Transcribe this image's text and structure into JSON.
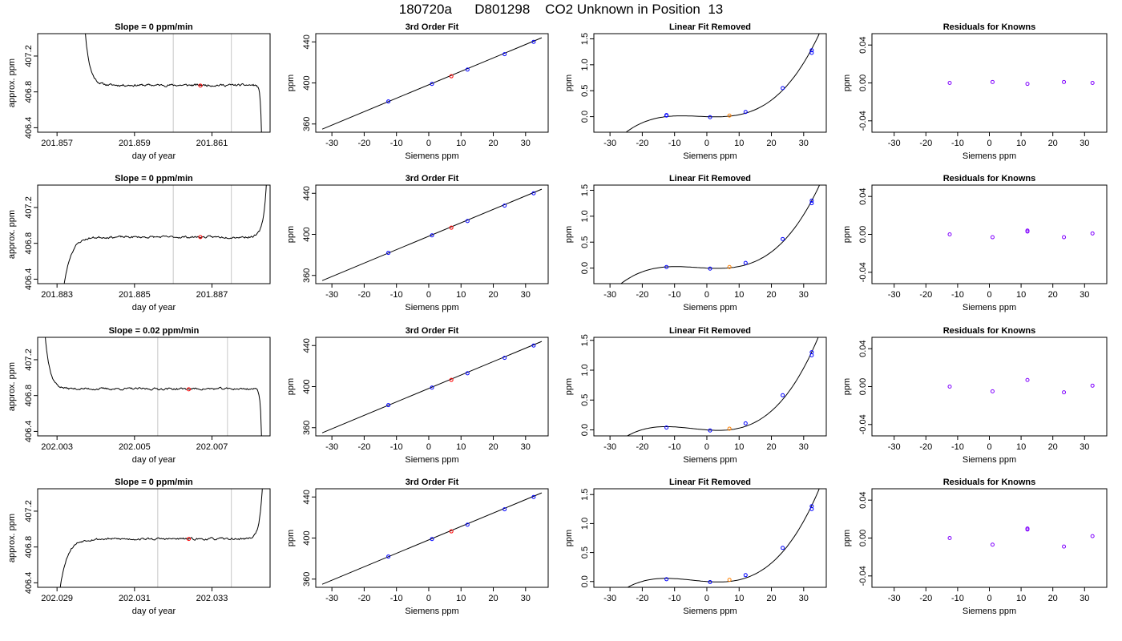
{
  "figure": {
    "title": "180720a      D801298    CO2 Unknown in Position  13"
  },
  "colors": {
    "axis": "#000000",
    "trace": "#000000",
    "window_lines": "#c8c8c8",
    "known_points": "#0000ff",
    "unknown_point": "#ff0000",
    "removed_unknown_point": "#ff8000",
    "residual_points": "#8000ff"
  },
  "chart_data": [
    {
      "type": "line",
      "title": "Slope =  0  ppm/min",
      "xlabel": "day of year",
      "ylabel": "approx. ppm",
      "xlim": [
        201.8565,
        201.8625
      ],
      "ylim": [
        406.35,
        407.45
      ],
      "xticks": [
        201.857,
        201.859,
        201.861
      ],
      "xtick_labels": [
        "201.857",
        "201.859",
        "201.861"
      ],
      "yticks": [
        406.4,
        406.8,
        407.2
      ],
      "ytick_labels": [
        "406.4",
        "406.8",
        "407.2"
      ],
      "vlines": [
        201.86,
        201.8615
      ],
      "marker": {
        "x": 201.8607,
        "y": 406.87
      },
      "trace": {
        "x_start": 201.8576,
        "x_end": 201.8623,
        "shape": "decay-left drop-right",
        "plateau": 406.875,
        "noise": 0.012,
        "edge_left": 408.6,
        "edge_right": 405.8,
        "tau": 0.00012,
        "seed": 11
      }
    },
    {
      "type": "line",
      "title": "3rd Order Fit",
      "xlabel": "Siemens ppm",
      "ylabel": "ppm",
      "xlim": [
        -35,
        37
      ],
      "ylim": [
        352,
        448
      ],
      "xticks": [
        -30,
        -20,
        -10,
        0,
        10,
        20,
        30
      ],
      "xtick_labels": [
        "-30",
        "-20",
        "-10",
        "0",
        "10",
        "20",
        "30"
      ],
      "yticks": [
        360,
        400,
        440
      ],
      "ytick_labels": [
        "360",
        "400",
        "440"
      ],
      "curve": {
        "x": [
          -33,
          35
        ],
        "y": [
          355,
          444
        ]
      },
      "known_points": [
        {
          "x": -12.5,
          "y": 382
        },
        {
          "x": 1.0,
          "y": 399
        },
        {
          "x": 12.0,
          "y": 413
        },
        {
          "x": 23.5,
          "y": 428
        },
        {
          "x": 32.5,
          "y": 440
        }
      ],
      "unknown_point": {
        "x": 7.0,
        "y": 406.5
      }
    },
    {
      "type": "line",
      "title": "Linear Fit Removed",
      "xlabel": "Siemens ppm",
      "ylabel": "ppm",
      "xlim": [
        -35,
        37
      ],
      "ylim": [
        -0.3,
        1.6
      ],
      "xticks": [
        -30,
        -20,
        -10,
        0,
        10,
        20,
        30
      ],
      "xtick_labels": [
        "-30",
        "-20",
        "-10",
        "0",
        "10",
        "20",
        "30"
      ],
      "yticks": [
        0.0,
        0.5,
        1.0,
        1.5
      ],
      "ytick_labels": [
        "0.0",
        "0.5",
        "1.0",
        "1.5"
      ],
      "curve": {
        "a": 0.0,
        "b": -0.002,
        "c": 0.00025,
        "d": 3.23e-05,
        "x_from": -33,
        "x_to": 35
      },
      "known_points": [
        {
          "x": -12.5,
          "y": 0.02
        },
        {
          "x": -12.5,
          "y": 0.03
        },
        {
          "x": 1.0,
          "y": -0.01
        },
        {
          "x": 12.0,
          "y": 0.09
        },
        {
          "x": 23.5,
          "y": 0.55
        },
        {
          "x": 32.5,
          "y": 1.23
        },
        {
          "x": 32.5,
          "y": 1.28
        }
      ],
      "removed_point": {
        "x": 7.0,
        "y": 0.02
      }
    },
    {
      "type": "scatter",
      "title": "Residuals for Knowns",
      "xlabel": "Siemens ppm",
      "ylabel": "ppm",
      "xlim": [
        -37,
        37
      ],
      "ylim": [
        -0.052,
        0.052
      ],
      "xticks": [
        -30,
        -20,
        -10,
        0,
        10,
        20,
        30
      ],
      "xtick_labels": [
        "-30",
        "-20",
        "-10",
        "0",
        "10",
        "20",
        "30"
      ],
      "yticks": [
        -0.04,
        0.0,
        0.04
      ],
      "ytick_labels": [
        "-0.04",
        "0.00",
        "0.04"
      ],
      "points": [
        {
          "x": -12.5,
          "y": 0.0
        },
        {
          "x": 1.0,
          "y": 0.001
        },
        {
          "x": 12.0,
          "y": -0.001
        },
        {
          "x": 23.5,
          "y": 0.001
        },
        {
          "x": 32.5,
          "y": 0.0
        }
      ]
    },
    {
      "type": "line",
      "title": "Slope =  0  ppm/min",
      "xlabel": "day of year",
      "ylabel": "approx. ppm",
      "xlim": [
        201.8825,
        201.8885
      ],
      "ylim": [
        406.35,
        407.45
      ],
      "xticks": [
        201.883,
        201.885,
        201.887
      ],
      "xtick_labels": [
        "201.883",
        "201.885",
        "201.887"
      ],
      "yticks": [
        406.4,
        406.8,
        407.2
      ],
      "ytick_labels": [
        "406.4",
        "406.8",
        "407.2"
      ],
      "vlines": [
        201.886,
        201.8875
      ],
      "marker": {
        "x": 201.8867,
        "y": 406.87
      },
      "trace": {
        "x_start": 201.883,
        "x_end": 201.8885,
        "shape": "rise-left rise-right",
        "plateau": 406.87,
        "noise": 0.012,
        "edge_left": 405.4,
        "edge_right": 408.8,
        "tau": 0.00018,
        "seed": 23
      }
    },
    {
      "type": "line",
      "title": "3rd Order Fit",
      "xlabel": "Siemens ppm",
      "ylabel": "ppm",
      "xlim": [
        -35,
        37
      ],
      "ylim": [
        352,
        448
      ],
      "xticks": [
        -30,
        -20,
        -10,
        0,
        10,
        20,
        30
      ],
      "xtick_labels": [
        "-30",
        "-20",
        "-10",
        "0",
        "10",
        "20",
        "30"
      ],
      "yticks": [
        360,
        400,
        440
      ],
      "ytick_labels": [
        "360",
        "400",
        "440"
      ],
      "curve": {
        "x": [
          -33,
          35
        ],
        "y": [
          355,
          444
        ]
      },
      "known_points": [
        {
          "x": -12.5,
          "y": 382
        },
        {
          "x": 1.0,
          "y": 399
        },
        {
          "x": 12.0,
          "y": 413
        },
        {
          "x": 23.5,
          "y": 428
        },
        {
          "x": 32.5,
          "y": 440
        }
      ],
      "unknown_point": {
        "x": 7.0,
        "y": 406.5
      }
    },
    {
      "type": "line",
      "title": "Linear Fit Removed",
      "xlabel": "Siemens ppm",
      "ylabel": "ppm",
      "xlim": [
        -35,
        37
      ],
      "ylim": [
        -0.3,
        1.6
      ],
      "xticks": [
        -30,
        -20,
        -10,
        0,
        10,
        20,
        30
      ],
      "xtick_labels": [
        "-30",
        "-20",
        "-10",
        "0",
        "10",
        "20",
        "30"
      ],
      "yticks": [
        0.0,
        0.5,
        1.0,
        1.5
      ],
      "ytick_labels": [
        "0.0",
        "0.5",
        "1.0",
        "1.5"
      ],
      "curve": {
        "a": 0.0,
        "b": -0.003,
        "c": 0.0003,
        "d": 3.15e-05,
        "x_from": -33,
        "x_to": 35
      },
      "known_points": [
        {
          "x": -12.5,
          "y": 0.02
        },
        {
          "x": 1.0,
          "y": -0.01
        },
        {
          "x": 12.0,
          "y": 0.1
        },
        {
          "x": 23.5,
          "y": 0.56
        },
        {
          "x": 32.5,
          "y": 1.25
        },
        {
          "x": 32.5,
          "y": 1.3
        }
      ],
      "removed_point": {
        "x": 7.0,
        "y": 0.02
      }
    },
    {
      "type": "scatter",
      "title": "Residuals for Knowns",
      "xlabel": "Siemens ppm",
      "ylabel": "ppm",
      "xlim": [
        -37,
        37
      ],
      "ylim": [
        -0.052,
        0.052
      ],
      "xticks": [
        -30,
        -20,
        -10,
        0,
        10,
        20,
        30
      ],
      "xtick_labels": [
        "-30",
        "-20",
        "-10",
        "0",
        "10",
        "20",
        "30"
      ],
      "yticks": [
        -0.04,
        0.0,
        0.04
      ],
      "ytick_labels": [
        "-0.04",
        "0.00",
        "0.04"
      ],
      "points": [
        {
          "x": -12.5,
          "y": 0.0
        },
        {
          "x": 1.0,
          "y": -0.003
        },
        {
          "x": 12.0,
          "y": 0.004
        },
        {
          "x": 12.0,
          "y": 0.003
        },
        {
          "x": 23.5,
          "y": -0.003
        },
        {
          "x": 32.5,
          "y": 0.001
        }
      ]
    },
    {
      "type": "line",
      "title": "Slope =  0.02  ppm/min",
      "xlabel": "day of year",
      "ylabel": "approx. ppm",
      "xlim": [
        202.0025,
        202.0085
      ],
      "ylim": [
        406.35,
        407.45
      ],
      "xticks": [
        202.003,
        202.005,
        202.007
      ],
      "xtick_labels": [
        "202.003",
        "202.005",
        "202.007"
      ],
      "yticks": [
        406.4,
        406.8,
        407.2
      ],
      "ytick_labels": [
        "406.4",
        "406.8",
        "407.2"
      ],
      "vlines": [
        202.0056,
        202.0074
      ],
      "marker": {
        "x": 202.0064,
        "y": 406.87
      },
      "trace": {
        "x_start": 202.0026,
        "x_end": 202.0083,
        "shape": "decay-left drop-right",
        "plateau": 406.875,
        "noise": 0.012,
        "edge_left": 408.2,
        "edge_right": 405.8,
        "tau": 0.00012,
        "seed": 37
      }
    },
    {
      "type": "line",
      "title": "3rd Order Fit",
      "xlabel": "Siemens ppm",
      "ylabel": "ppm",
      "xlim": [
        -35,
        37
      ],
      "ylim": [
        352,
        448
      ],
      "xticks": [
        -30,
        -20,
        -10,
        0,
        10,
        20,
        30
      ],
      "xtick_labels": [
        "-30",
        "-20",
        "-10",
        "0",
        "10",
        "20",
        "30"
      ],
      "yticks": [
        360,
        400,
        440
      ],
      "ytick_labels": [
        "360",
        "400",
        "440"
      ],
      "curve": {
        "x": [
          -33,
          35
        ],
        "y": [
          355,
          444
        ]
      },
      "known_points": [
        {
          "x": -12.5,
          "y": 382
        },
        {
          "x": 1.0,
          "y": 399
        },
        {
          "x": 12.0,
          "y": 413
        },
        {
          "x": 23.5,
          "y": 428
        },
        {
          "x": 32.5,
          "y": 440
        }
      ],
      "unknown_point": {
        "x": 7.0,
        "y": 406.5
      }
    },
    {
      "type": "line",
      "title": "Linear Fit Removed",
      "xlabel": "Siemens ppm",
      "ylabel": "ppm",
      "xlim": [
        -35,
        37
      ],
      "ylim": [
        -0.1,
        1.55
      ],
      "xticks": [
        -30,
        -20,
        -10,
        0,
        10,
        20,
        30
      ],
      "xtick_labels": [
        "-30",
        "-20",
        "-10",
        "0",
        "10",
        "20",
        "30"
      ],
      "yticks": [
        0.0,
        0.5,
        1.0,
        1.5
      ],
      "ytick_labels": [
        "0.0",
        "0.5",
        "1.0",
        "1.5"
      ],
      "curve": {
        "a": 0.0,
        "b": -0.004,
        "c": 0.0004,
        "d": 2.95e-05,
        "x_from": -33,
        "x_to": 35
      },
      "known_points": [
        {
          "x": -12.5,
          "y": 0.04
        },
        {
          "x": 1.0,
          "y": -0.01
        },
        {
          "x": 12.0,
          "y": 0.11
        },
        {
          "x": 23.5,
          "y": 0.58
        },
        {
          "x": 32.5,
          "y": 1.25
        },
        {
          "x": 32.5,
          "y": 1.3
        }
      ],
      "removed_point": {
        "x": 7.0,
        "y": 0.02
      }
    },
    {
      "type": "scatter",
      "title": "Residuals for Knowns",
      "xlabel": "Siemens ppm",
      "ylabel": "ppm",
      "xlim": [
        -37,
        37
      ],
      "ylim": [
        -0.052,
        0.052
      ],
      "xticks": [
        -30,
        -20,
        -10,
        0,
        10,
        20,
        30
      ],
      "xtick_labels": [
        "-30",
        "-20",
        "-10",
        "0",
        "10",
        "20",
        "30"
      ],
      "yticks": [
        -0.04,
        0.0,
        0.04
      ],
      "ytick_labels": [
        "-0.04",
        "0.00",
        "0.04"
      ],
      "points": [
        {
          "x": -12.5,
          "y": 0.0
        },
        {
          "x": 1.0,
          "y": -0.005
        },
        {
          "x": 12.0,
          "y": 0.007
        },
        {
          "x": 23.5,
          "y": -0.006
        },
        {
          "x": 32.5,
          "y": 0.001
        }
      ]
    },
    {
      "type": "line",
      "title": "Slope =  0  ppm/min",
      "xlabel": "day of year",
      "ylabel": "approx. ppm",
      "xlim": [
        202.0285,
        202.0345
      ],
      "ylim": [
        406.35,
        407.45
      ],
      "xticks": [
        202.029,
        202.031,
        202.033
      ],
      "xtick_labels": [
        "202.029",
        "202.031",
        "202.033"
      ],
      "yticks": [
        406.4,
        406.8,
        407.2
      ],
      "ytick_labels": [
        "406.4",
        "406.8",
        "407.2"
      ],
      "vlines": [
        202.0316,
        202.0335
      ],
      "marker": {
        "x": 202.0324,
        "y": 406.89
      },
      "trace": {
        "x_start": 202.0289,
        "x_end": 202.0344,
        "shape": "rise-left rise-right",
        "plateau": 406.89,
        "noise": 0.012,
        "edge_left": 405.4,
        "edge_right": 408.8,
        "tau": 0.00018,
        "seed": 53
      }
    },
    {
      "type": "line",
      "title": "3rd Order Fit",
      "xlabel": "Siemens ppm",
      "ylabel": "ppm",
      "xlim": [
        -35,
        37
      ],
      "ylim": [
        352,
        448
      ],
      "xticks": [
        -30,
        -20,
        -10,
        0,
        10,
        20,
        30
      ],
      "xtick_labels": [
        "-30",
        "-20",
        "-10",
        "0",
        "10",
        "20",
        "30"
      ],
      "yticks": [
        360,
        400,
        440
      ],
      "ytick_labels": [
        "360",
        "400",
        "440"
      ],
      "curve": {
        "x": [
          -33,
          35
        ],
        "y": [
          355,
          444
        ]
      },
      "known_points": [
        {
          "x": -12.5,
          "y": 382
        },
        {
          "x": 1.0,
          "y": 399
        },
        {
          "x": 12.0,
          "y": 413
        },
        {
          "x": 23.5,
          "y": 428
        },
        {
          "x": 32.5,
          "y": 440
        }
      ],
      "unknown_point": {
        "x": 7.0,
        "y": 406.5
      }
    },
    {
      "type": "line",
      "title": "Linear Fit Removed",
      "xlabel": "Siemens ppm",
      "ylabel": "ppm",
      "xlim": [
        -35,
        37
      ],
      "ylim": [
        -0.1,
        1.6
      ],
      "xticks": [
        -30,
        -20,
        -10,
        0,
        10,
        20,
        30
      ],
      "xtick_labels": [
        "-30",
        "-20",
        "-10",
        "0",
        "10",
        "20",
        "30"
      ],
      "yticks": [
        0.0,
        0.5,
        1.0,
        1.5
      ],
      "ytick_labels": [
        "0.0",
        "0.5",
        "1.0",
        "1.5"
      ],
      "curve": {
        "a": 0.0,
        "b": -0.004,
        "c": 0.0004,
        "d": 2.97e-05,
        "x_from": -33,
        "x_to": 35
      },
      "known_points": [
        {
          "x": -12.5,
          "y": 0.04
        },
        {
          "x": 1.0,
          "y": -0.01
        },
        {
          "x": 12.0,
          "y": 0.11
        },
        {
          "x": 23.5,
          "y": 0.58
        },
        {
          "x": 32.5,
          "y": 1.25
        },
        {
          "x": 32.5,
          "y": 1.3
        }
      ],
      "removed_point": {
        "x": 7.0,
        "y": 0.03
      }
    },
    {
      "type": "scatter",
      "title": "Residuals for Knowns",
      "xlabel": "Siemens ppm",
      "ylabel": "ppm",
      "xlim": [
        -37,
        37
      ],
      "ylim": [
        -0.052,
        0.052
      ],
      "xticks": [
        -30,
        -20,
        -10,
        0,
        10,
        20,
        30
      ],
      "xtick_labels": [
        "-30",
        "-20",
        "-10",
        "0",
        "10",
        "20",
        "30"
      ],
      "yticks": [
        -0.04,
        0.0,
        0.04
      ],
      "ytick_labels": [
        "-0.04",
        "0.00",
        "0.04"
      ],
      "points": [
        {
          "x": -12.5,
          "y": 0.0
        },
        {
          "x": 1.0,
          "y": -0.007
        },
        {
          "x": 12.0,
          "y": 0.01
        },
        {
          "x": 12.0,
          "y": 0.009
        },
        {
          "x": 23.5,
          "y": -0.009
        },
        {
          "x": 32.5,
          "y": 0.002
        }
      ]
    }
  ]
}
